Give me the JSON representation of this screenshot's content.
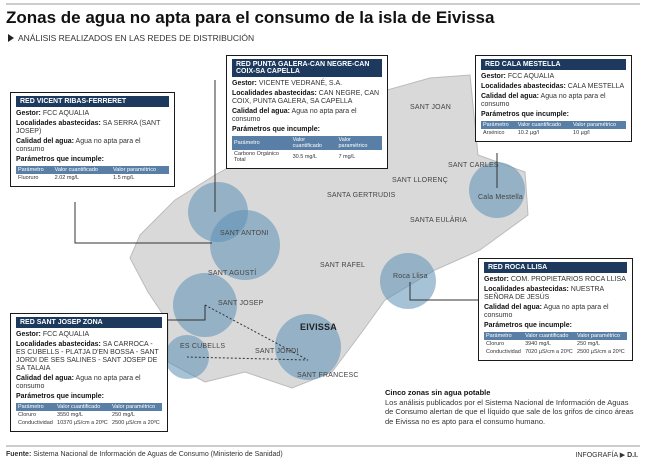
{
  "header": {
    "title": "Zonas de agua no apta para el consumo de la isla de Eivissa",
    "subtitle": "ANÁLISIS REALIZADOS EN LAS REDES DE DISTRIBUCIÓN"
  },
  "labels": {
    "gestor": "Gestor:",
    "localidades": "Localidades abastecidas:",
    "calidad": "Calidad del agua:",
    "parametros": "Parámetros que incumple:",
    "col_param": "Parámetro",
    "col_cuant": "Valor cuantificado",
    "col_ref": "Valor paramétrico"
  },
  "boxes": [
    {
      "title": "RED VICENT RIBAS-FERRERET",
      "gestor": "FCC AQUALIA",
      "localidades": "SA SERRA (SANT JOSEP)",
      "calidad": "Agua no apta para el consumo",
      "rows": [
        [
          "Fluoruro",
          "2.02 mg/L",
          "1.5 mg/L"
        ]
      ]
    },
    {
      "title": "RED PUNTA GALERA-CAN NEGRE-CAN COIX-SA CAPELLA",
      "gestor": "VICENTE VEDRANÉ, S.A.",
      "localidades": "CAN NEGRE, CAN COIX, PUNTA GALERA, SA CAPELLA",
      "calidad": "Agua no apta para el consumo",
      "rows": [
        [
          "Carbono Orgánico Total",
          "30.5 mg/L",
          "7 mg/L"
        ]
      ]
    },
    {
      "title": "RED CALA MESTELLA",
      "gestor": "FCC AQUALIA",
      "localidades": "CALA MESTELLA",
      "calidad": "Agua no apta para el consumo",
      "rows": [
        [
          "Arsénico",
          "10.2 µg/l",
          "10 µg/l"
        ]
      ]
    },
    {
      "title": "RED ROCA LLISA",
      "gestor": "COM. PROPIETARIOS ROCA LLISA",
      "localidades": "NUESTRA SEÑORA DE JESÚS",
      "calidad": "Agua no apta para el consumo",
      "rows": [
        [
          "Cloruro",
          "3940 mg/L",
          "250 mg/L"
        ],
        [
          "Conductividad",
          "7020 µS/cm a 20ºC",
          "2500 µS/cm a 20ºC"
        ]
      ]
    },
    {
      "title": "RED SANT JOSEP ZONA",
      "gestor": "FCC AQUALIA",
      "localidades": "SA CARROCA - ES CUBELLS - PLATJA D'EN BOSSA - SANT JORDI DE SES SALINES - SANT JOSEP DE SA TALAIA",
      "calidad": "Agua no apta para el consumo",
      "rows": [
        [
          "Cloruro",
          "3550 mg/L",
          "250 mg/L"
        ],
        [
          "Conductividad",
          "10370 µS/cm a 20ºC",
          "2500 µS/cm a 20ºC"
        ]
      ]
    }
  ],
  "map_labels": [
    "SANT JOAN",
    "SANT LLORENÇ",
    "SANT CARLES",
    "SANTA GERTRUDIS",
    "SANTA EULÀRIA",
    "SANT ANTONI",
    "SANT RAFEL",
    "SANT AGUSTÍ",
    "SANT JOSEP",
    "EIVISSA",
    "SANT JORDI",
    "SANT FRANCESC",
    "ES CUBELLS",
    "Cala Mestella",
    "Roca Llisa"
  ],
  "note": {
    "title": "Cinco zonas sin agua potable",
    "text": "Los análisis publicados por el Sistema Nacional de Información de Aguas de Consumo alertan de que el líquido que sale de los grifos de cinco áreas de Eivissa no es apto para el consumo humano."
  },
  "footer": {
    "source_label": "Fuente:",
    "source": "Sistema Nacional de Información de Aguas de Consumo (Ministerio de Sanidad)",
    "credit_label": "INFOGRAFÍA",
    "credit": "D.I."
  }
}
